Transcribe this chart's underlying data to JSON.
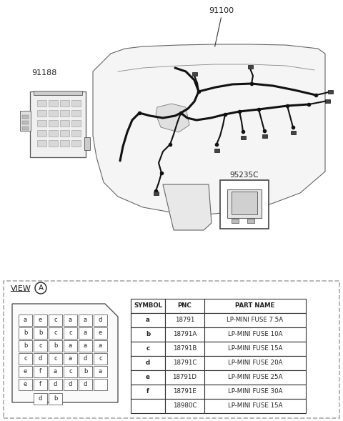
{
  "bg_color": "#ffffff",
  "part_numbers": {
    "main_harness": "91100",
    "junction_box": "91188",
    "relay": "95235C"
  },
  "view_label": "VIEW",
  "view_letter": "A",
  "fuse_grid": [
    [
      "a",
      "e",
      "c",
      "a",
      "a",
      "d"
    ],
    [
      "b",
      "b",
      "c",
      "c",
      "a",
      "e"
    ],
    [
      "b",
      "c",
      "b",
      "a",
      "a",
      "a"
    ],
    [
      "c",
      "d",
      "c",
      "a",
      "d",
      "c"
    ],
    [
      "e",
      "f",
      "a",
      "c",
      "b",
      "a"
    ],
    [
      "e",
      "f",
      "d",
      "d",
      "d",
      ""
    ]
  ],
  "fuse_bottom": [
    "d",
    "b"
  ],
  "table_headers": [
    "SYMBOL",
    "PNC",
    "PART NAME"
  ],
  "table_rows": [
    [
      "a",
      "18791",
      "LP-MINI FUSE 7.5A"
    ],
    [
      "b",
      "18791A",
      "LP-MINI FUSE 10A"
    ],
    [
      "c",
      "18791B",
      "LP-MINI FUSE 15A"
    ],
    [
      "d",
      "18791C",
      "LP-MINI FUSE 20A"
    ],
    [
      "e",
      "18791D",
      "LP-MINI FUSE 25A"
    ],
    [
      "f",
      "18791E",
      "LP-MINI FUSE 30A"
    ],
    [
      "",
      "18980C",
      "LP-MINI FUSE 15A"
    ]
  ],
  "dashed_border_color": "#aaaaaa",
  "table_border_color": "#333333",
  "text_color": "#222222",
  "grid_color": "#555555"
}
